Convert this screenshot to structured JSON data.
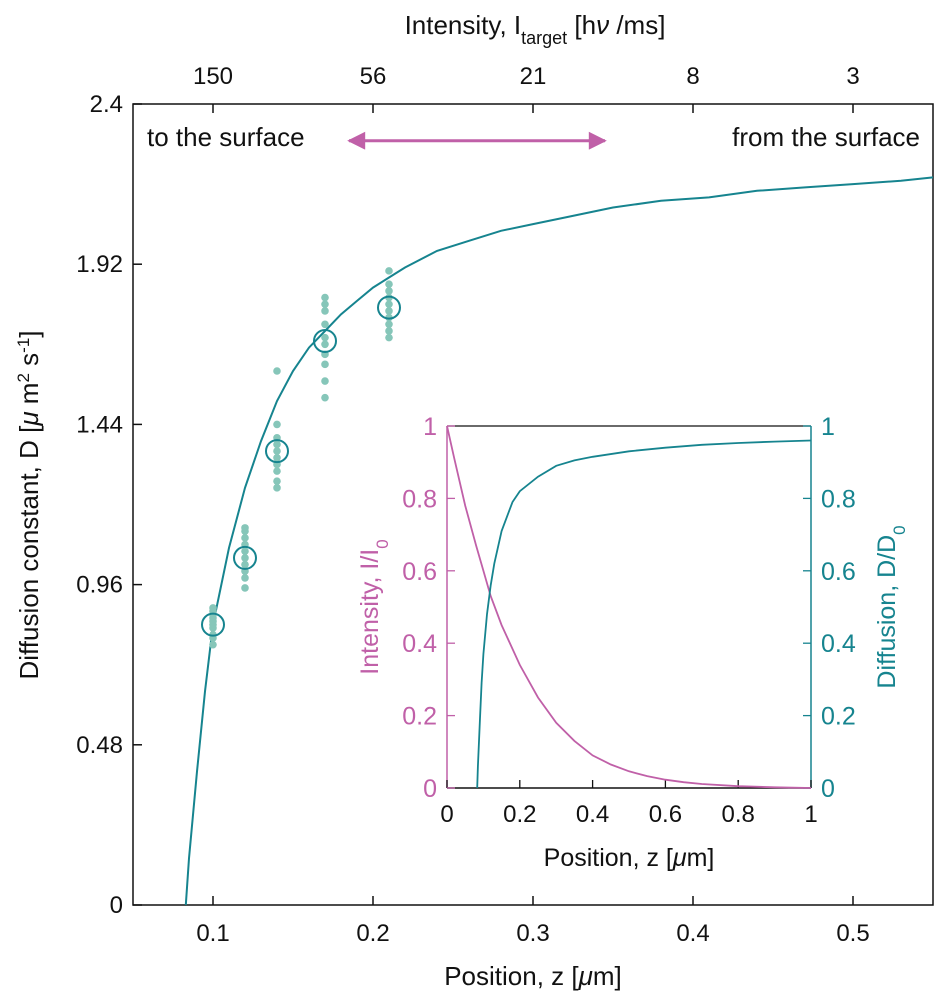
{
  "chart_data": [
    {
      "type": "scatter",
      "xlabel": "Position, z [μm]",
      "ylabel": "Diffusion constant, D [μm² s⁻¹]",
      "top_axis_label": "Intensity, I_target [hν/ms]",
      "xlim": [
        0.05,
        0.55
      ],
      "ylim": [
        0,
        2.4
      ],
      "x_ticks": [
        0.1,
        0.2,
        0.3,
        0.4,
        0.5
      ],
      "x_tick_labels": [
        "0.1",
        "0.2",
        "0.3",
        "0.4",
        "0.5"
      ],
      "y_ticks": [
        0,
        0.48,
        0.96,
        1.44,
        1.92,
        2.4
      ],
      "y_tick_labels": [
        "0",
        "0.48",
        "0.96",
        "1.44",
        "1.92",
        "2.4"
      ],
      "top_ticks": [
        {
          "x": 0.1,
          "label": "150"
        },
        {
          "x": 0.2,
          "label": "56"
        },
        {
          "x": 0.3,
          "label": "21"
        },
        {
          "x": 0.4,
          "label": "8"
        },
        {
          "x": 0.5,
          "label": "3"
        }
      ],
      "annotations": {
        "left": "to the surface",
        "right": "from the surface",
        "arrow_x": [
          0.185,
          0.345
        ],
        "arrow_y": 2.29
      },
      "grid": false,
      "colors": {
        "fit": "#16848f",
        "points": "#86c6b9",
        "means": "#16848f",
        "arrow": "#c060a8"
      },
      "series": [
        {
          "kind": "points",
          "groups": [
            {
              "x": 0.1,
              "values": [
                0.78,
                0.8,
                0.81,
                0.83,
                0.84,
                0.85,
                0.86,
                0.87,
                0.88,
                0.89
              ]
            },
            {
              "x": 0.12,
              "values": [
                0.95,
                0.98,
                1.0,
                1.02,
                1.04,
                1.06,
                1.08,
                1.1,
                1.12,
                1.13
              ]
            },
            {
              "x": 0.14,
              "values": [
                1.25,
                1.27,
                1.3,
                1.32,
                1.34,
                1.36,
                1.38,
                1.4,
                1.44,
                1.6
              ]
            },
            {
              "x": 0.17,
              "values": [
                1.52,
                1.57,
                1.62,
                1.65,
                1.68,
                1.7,
                1.74,
                1.78,
                1.8,
                1.82
              ]
            },
            {
              "x": 0.21,
              "values": [
                1.7,
                1.72,
                1.74,
                1.76,
                1.78,
                1.8,
                1.82,
                1.84,
                1.86,
                1.9
              ]
            }
          ]
        },
        {
          "kind": "means",
          "x": [
            0.1,
            0.12,
            0.14,
            0.17,
            0.21
          ],
          "y": [
            0.84,
            1.04,
            1.36,
            1.69,
            1.79
          ]
        },
        {
          "kind": "fit",
          "x": [
            0.083,
            0.085,
            0.09,
            0.095,
            0.1,
            0.11,
            0.12,
            0.13,
            0.14,
            0.15,
            0.16,
            0.17,
            0.18,
            0.19,
            0.2,
            0.21,
            0.22,
            0.24,
            0.26,
            0.28,
            0.3,
            0.32,
            0.35,
            0.38,
            0.41,
            0.44,
            0.47,
            0.5,
            0.53,
            0.55
          ],
          "y": [
            0.0,
            0.14,
            0.4,
            0.64,
            0.84,
            1.07,
            1.25,
            1.39,
            1.51,
            1.6,
            1.67,
            1.72,
            1.77,
            1.81,
            1.85,
            1.88,
            1.91,
            1.96,
            1.99,
            2.02,
            2.04,
            2.06,
            2.09,
            2.11,
            2.12,
            2.14,
            2.15,
            2.16,
            2.17,
            2.18
          ]
        }
      ]
    },
    {
      "type": "line",
      "xlabel": "Position, z [μm]",
      "ylabel_left": "Intensity, I/I₀",
      "ylabel_right": "Diffusion, D/D₀",
      "xlim": [
        0,
        1
      ],
      "ylim": [
        0,
        1
      ],
      "x_ticks": [
        0,
        0.2,
        0.4,
        0.6,
        0.8,
        1
      ],
      "x_tick_labels": [
        "0",
        "0.2",
        "0.4",
        "0.6",
        "0.8",
        "1"
      ],
      "y_ticks": [
        0,
        0.2,
        0.4,
        0.6,
        0.8,
        1
      ],
      "y_tick_labels": [
        "0",
        "0.2",
        "0.4",
        "0.6",
        "0.8",
        "1"
      ],
      "grid": false,
      "colors": {
        "intensity": "#c060a8",
        "diffusion": "#16848f"
      },
      "series": [
        {
          "key": "intensity",
          "x": [
            0,
            0.02,
            0.05,
            0.08,
            0.1,
            0.12,
            0.15,
            0.2,
            0.25,
            0.3,
            0.35,
            0.4,
            0.45,
            0.5,
            0.55,
            0.6,
            0.65,
            0.7,
            0.8,
            0.9,
            1.0
          ],
          "y": [
            1.0,
            0.91,
            0.78,
            0.67,
            0.6,
            0.53,
            0.45,
            0.34,
            0.25,
            0.18,
            0.13,
            0.09,
            0.065,
            0.046,
            0.033,
            0.023,
            0.016,
            0.011,
            0.005,
            0.002,
            0.0
          ]
        },
        {
          "key": "diffusion",
          "x": [
            0.083,
            0.085,
            0.09,
            0.095,
            0.1,
            0.11,
            0.12,
            0.13,
            0.15,
            0.18,
            0.2,
            0.25,
            0.3,
            0.35,
            0.4,
            0.5,
            0.6,
            0.7,
            0.8,
            0.9,
            1.0
          ],
          "y": [
            0.0,
            0.06,
            0.18,
            0.29,
            0.37,
            0.48,
            0.56,
            0.62,
            0.71,
            0.79,
            0.82,
            0.86,
            0.89,
            0.905,
            0.915,
            0.93,
            0.94,
            0.948,
            0.953,
            0.957,
            0.96
          ]
        }
      ]
    }
  ]
}
